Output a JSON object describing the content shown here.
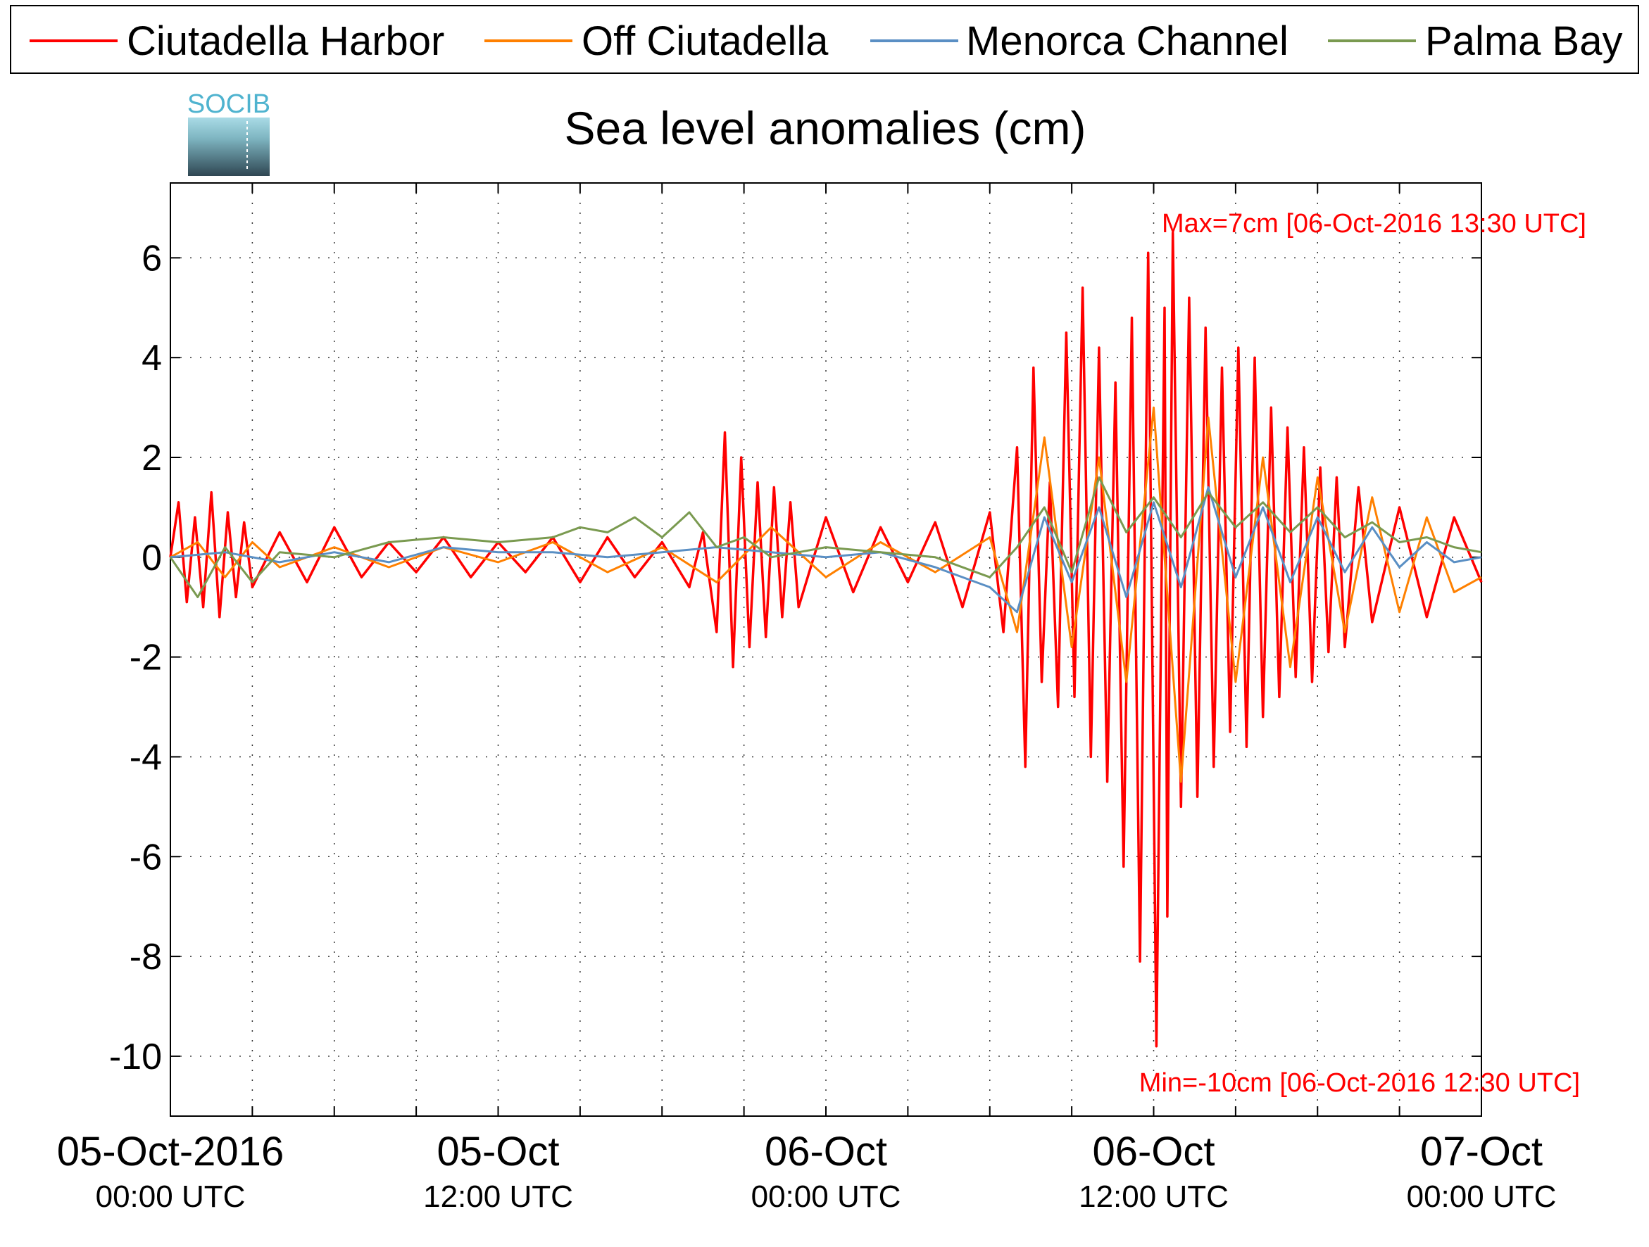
{
  "chart_data": {
    "type": "line",
    "title": "Sea level anomalies (cm)",
    "logo_text": "SOCIB",
    "xlabel": "",
    "ylabel": "",
    "ylim": [
      -11.2,
      7.5
    ],
    "yticks": [
      6,
      4,
      2,
      0,
      -2,
      -4,
      -6,
      -8,
      -10
    ],
    "ytick_labels": [
      "6",
      "4",
      "2",
      "0",
      "-2",
      "-4",
      "-6",
      "-8",
      "-10"
    ],
    "xlim_hours": [
      0,
      48
    ],
    "x_minor_tick_step_hours": 3,
    "xticks": [
      {
        "hour": 0,
        "date": "05-Oct-2016",
        "time": "00:00 UTC"
      },
      {
        "hour": 12,
        "date": "05-Oct",
        "time": "12:00 UTC"
      },
      {
        "hour": 24,
        "date": "06-Oct",
        "time": "00:00 UTC"
      },
      {
        "hour": 36,
        "date": "06-Oct",
        "time": "12:00 UTC"
      },
      {
        "hour": 48,
        "date": "07-Oct",
        "time": "00:00 UTC"
      }
    ],
    "grid": true,
    "legend_position": "top",
    "annotations": {
      "max": "Max=7cm [06-Oct-2016 13:30 UTC]",
      "min": "Min=-10cm [06-Oct-2016 12:30 UTC]"
    },
    "series": [
      {
        "name": "Ciutadella Harbor",
        "color": "#ff0000",
        "x": [
          0,
          0.3,
          0.6,
          0.9,
          1.2,
          1.5,
          1.8,
          2.1,
          2.4,
          2.7,
          3,
          4,
          5,
          6,
          7,
          8,
          9,
          10,
          11,
          12,
          13,
          14,
          15,
          16,
          17,
          18,
          19,
          19.5,
          20,
          20.3,
          20.6,
          20.9,
          21.2,
          21.5,
          21.8,
          22.1,
          22.4,
          22.7,
          23,
          24,
          25,
          26,
          27,
          28,
          29,
          30,
          30.5,
          31,
          31.3,
          31.6,
          31.9,
          32.2,
          32.5,
          32.8,
          33.1,
          33.4,
          33.7,
          34,
          34.3,
          34.6,
          34.9,
          35.2,
          35.5,
          35.8,
          36.1,
          36.4,
          36.5,
          36.7,
          37,
          37.3,
          37.6,
          37.9,
          38.2,
          38.5,
          38.8,
          39.1,
          39.4,
          39.7,
          40,
          40.3,
          40.6,
          40.9,
          41.2,
          41.5,
          41.8,
          42.1,
          42.4,
          42.7,
          43,
          43.5,
          44,
          45,
          46,
          47,
          48
        ],
        "values": [
          0,
          1.1,
          -0.9,
          0.8,
          -1.0,
          1.3,
          -1.2,
          0.9,
          -0.8,
          0.7,
          -0.6,
          0.5,
          -0.5,
          0.6,
          -0.4,
          0.3,
          -0.3,
          0.4,
          -0.4,
          0.3,
          -0.3,
          0.4,
          -0.5,
          0.4,
          -0.4,
          0.3,
          -0.6,
          0.5,
          -1.5,
          2.5,
          -2.2,
          2.0,
          -1.8,
          1.5,
          -1.6,
          1.4,
          -1.2,
          1.1,
          -1.0,
          0.8,
          -0.7,
          0.6,
          -0.5,
          0.7,
          -1.0,
          0.9,
          -1.5,
          2.2,
          -4.2,
          3.8,
          -2.5,
          1.5,
          -3.0,
          4.5,
          -2.8,
          5.4,
          -4.0,
          4.2,
          -4.5,
          3.5,
          -6.2,
          4.8,
          -8.1,
          6.1,
          -9.8,
          5.0,
          -7.2,
          6.5,
          -5.0,
          5.2,
          -4.8,
          4.6,
          -4.2,
          3.8,
          -3.5,
          4.2,
          -3.8,
          4.0,
          -3.2,
          3.0,
          -2.8,
          2.6,
          -2.4,
          2.2,
          -2.5,
          1.8,
          -1.9,
          1.6,
          -1.8,
          1.4,
          -1.3,
          1.0,
          -1.2,
          0.8,
          -0.5
        ]
      },
      {
        "name": "Off Ciutadella",
        "color": "#ff8000",
        "x": [
          0,
          1,
          2,
          3,
          4,
          6,
          8,
          10,
          12,
          14,
          16,
          18,
          20,
          22,
          24,
          26,
          28,
          30,
          31,
          32,
          33,
          34,
          35,
          36,
          37,
          38,
          39,
          40,
          41,
          42,
          43,
          44,
          45,
          46,
          47,
          48
        ],
        "values": [
          0,
          0.3,
          -0.4,
          0.3,
          -0.2,
          0.2,
          -0.2,
          0.2,
          -0.1,
          0.3,
          -0.3,
          0.2,
          -0.5,
          0.6,
          -0.4,
          0.3,
          -0.3,
          0.4,
          -1.5,
          2.4,
          -1.8,
          2.0,
          -2.5,
          3.0,
          -4.5,
          2.8,
          -2.5,
          2.0,
          -2.2,
          1.6,
          -1.5,
          1.2,
          -1.1,
          0.8,
          -0.7,
          -0.4
        ]
      },
      {
        "name": "Menorca Channel",
        "color": "#5a8fc4",
        "x": [
          0,
          2,
          4,
          6,
          8,
          10,
          12,
          14,
          16,
          18,
          20,
          22,
          24,
          26,
          28,
          30,
          31,
          32,
          33,
          34,
          35,
          36,
          37,
          38,
          39,
          40,
          41,
          42,
          43,
          44,
          45,
          46,
          47,
          48
        ],
        "values": [
          0,
          0.1,
          -0.1,
          0.1,
          -0.1,
          0.2,
          0.1,
          0.1,
          0.0,
          0.1,
          0.2,
          0.1,
          0.0,
          0.1,
          -0.2,
          -0.6,
          -1.1,
          0.8,
          -0.5,
          1.0,
          -0.8,
          1.1,
          -0.6,
          1.4,
          -0.4,
          1.0,
          -0.5,
          0.8,
          -0.3,
          0.6,
          -0.2,
          0.3,
          -0.1,
          0.0
        ]
      },
      {
        "name": "Palma Bay",
        "color": "#7a9a50",
        "x": [
          0,
          1,
          2,
          3,
          4,
          6,
          8,
          10,
          12,
          14,
          15,
          16,
          17,
          18,
          19,
          20,
          21,
          22,
          24,
          26,
          28,
          30,
          31,
          32,
          33,
          34,
          35,
          36,
          37,
          38,
          39,
          40,
          41,
          42,
          43,
          44,
          45,
          46,
          47,
          48
        ],
        "values": [
          0,
          -0.8,
          0.2,
          -0.5,
          0.1,
          0.0,
          0.3,
          0.4,
          0.3,
          0.4,
          0.6,
          0.5,
          0.8,
          0.4,
          0.9,
          0.2,
          0.4,
          0.0,
          0.2,
          0.1,
          0.0,
          -0.4,
          0.2,
          1.0,
          -0.3,
          1.6,
          0.5,
          1.2,
          0.4,
          1.3,
          0.6,
          1.1,
          0.5,
          1.0,
          0.4,
          0.7,
          0.3,
          0.4,
          0.2,
          0.1
        ]
      }
    ]
  }
}
